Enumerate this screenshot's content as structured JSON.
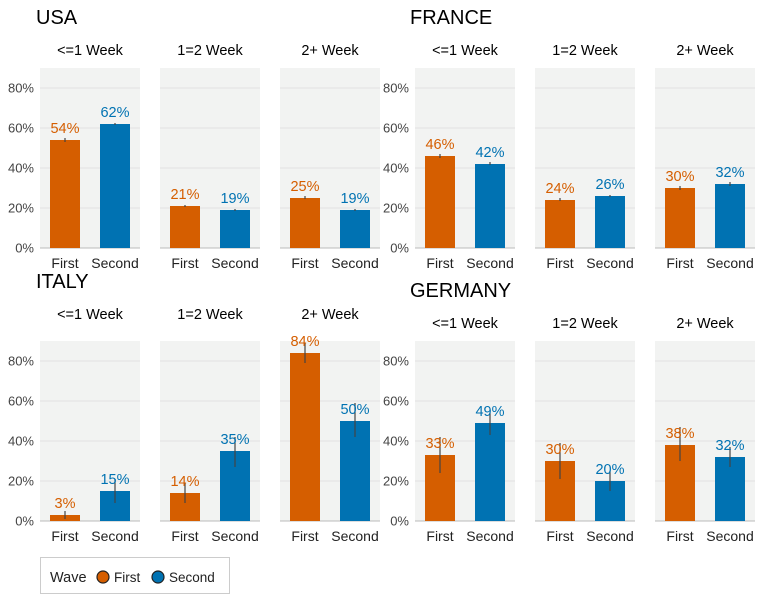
{
  "legend": {
    "title": "Wave",
    "items": [
      {
        "label": "First",
        "color": "#D55E00"
      },
      {
        "label": "Second",
        "color": "#0072B2"
      }
    ]
  },
  "colors": {
    "panel_bg": "#F2F3F2",
    "grid": "#DDDDDD",
    "error_bar": "#444444"
  },
  "chart_data": [
    {
      "type": "bar",
      "country": "USA",
      "categories": [
        "First",
        "Second"
      ],
      "y_ticks": [
        "0%",
        "20%",
        "40%",
        "60%",
        "80%"
      ],
      "ylim": [
        0,
        0.9
      ],
      "facets": [
        {
          "title": "<=1 Week",
          "values": [
            0.54,
            0.62
          ],
          "labels": [
            "54%",
            "62%"
          ],
          "err": [
            [
              0.53,
              0.55
            ],
            [
              0.615,
              0.625
            ]
          ]
        },
        {
          "title": "1=2 Week",
          "values": [
            0.21,
            0.19
          ],
          "labels": [
            "21%",
            "19%"
          ],
          "err": [
            [
              0.205,
              0.215
            ],
            [
              0.185,
              0.195
            ]
          ]
        },
        {
          "title": "2+ Week",
          "values": [
            0.25,
            0.19
          ],
          "labels": [
            "25%",
            "19%"
          ],
          "err": [
            [
              0.245,
              0.26
            ],
            [
              0.185,
              0.195
            ]
          ]
        }
      ]
    },
    {
      "type": "bar",
      "country": "FRANCE",
      "categories": [
        "First",
        "Second"
      ],
      "y_ticks": [
        "0%",
        "20%",
        "40%",
        "60%",
        "80%"
      ],
      "ylim": [
        0,
        0.9
      ],
      "facets": [
        {
          "title": "<=1 Week",
          "values": [
            0.46,
            0.42
          ],
          "labels": [
            "46%",
            "42%"
          ],
          "err": [
            [
              0.45,
              0.47
            ],
            [
              0.415,
              0.43
            ]
          ]
        },
        {
          "title": "1=2 Week",
          "values": [
            0.24,
            0.26
          ],
          "labels": [
            "24%",
            "26%"
          ],
          "err": [
            [
              0.235,
              0.25
            ],
            [
              0.255,
              0.265
            ]
          ]
        },
        {
          "title": "2+ Week",
          "values": [
            0.3,
            0.32
          ],
          "labels": [
            "30%",
            "32%"
          ],
          "err": [
            [
              0.29,
              0.31
            ],
            [
              0.31,
              0.33
            ]
          ]
        }
      ]
    },
    {
      "type": "bar",
      "country": "ITALY",
      "categories": [
        "First",
        "Second"
      ],
      "y_ticks": [
        "0%",
        "20%",
        "40%",
        "60%",
        "80%"
      ],
      "ylim": [
        0,
        0.9
      ],
      "facets": [
        {
          "title": "<=1 Week",
          "values": [
            0.03,
            0.15
          ],
          "labels": [
            "3%",
            "15%"
          ],
          "err": [
            [
              0.01,
              0.05
            ],
            [
              0.09,
              0.21
            ]
          ]
        },
        {
          "title": "1=2 Week",
          "values": [
            0.14,
            0.35
          ],
          "labels": [
            "14%",
            "35%"
          ],
          "err": [
            [
              0.09,
              0.19
            ],
            [
              0.27,
              0.42
            ]
          ]
        },
        {
          "title": "2+ Week",
          "values": [
            0.84,
            0.5
          ],
          "labels": [
            "84%",
            "50%"
          ],
          "err": [
            [
              0.79,
              0.89
            ],
            [
              0.42,
              0.59
            ]
          ]
        }
      ]
    },
    {
      "type": "bar",
      "country": "GERMANY",
      "categories": [
        "First",
        "Second"
      ],
      "y_ticks": [
        "0%",
        "20%",
        "40%",
        "60%",
        "80%"
      ],
      "ylim": [
        0,
        0.9
      ],
      "facets": [
        {
          "title": "<=1 Week",
          "values": [
            0.33,
            0.49
          ],
          "labels": [
            "33%",
            "49%"
          ],
          "err": [
            [
              0.24,
              0.42
            ],
            [
              0.43,
              0.54
            ]
          ]
        },
        {
          "title": "1=2 Week",
          "values": [
            0.3,
            0.2
          ],
          "labels": [
            "30%",
            "20%"
          ],
          "err": [
            [
              0.21,
              0.39
            ],
            [
              0.15,
              0.25
            ]
          ]
        },
        {
          "title": "2+ Week",
          "values": [
            0.38,
            0.32
          ],
          "labels": [
            "38%",
            "32%"
          ],
          "err": [
            [
              0.3,
              0.47
            ],
            [
              0.27,
              0.37
            ]
          ]
        }
      ]
    }
  ]
}
